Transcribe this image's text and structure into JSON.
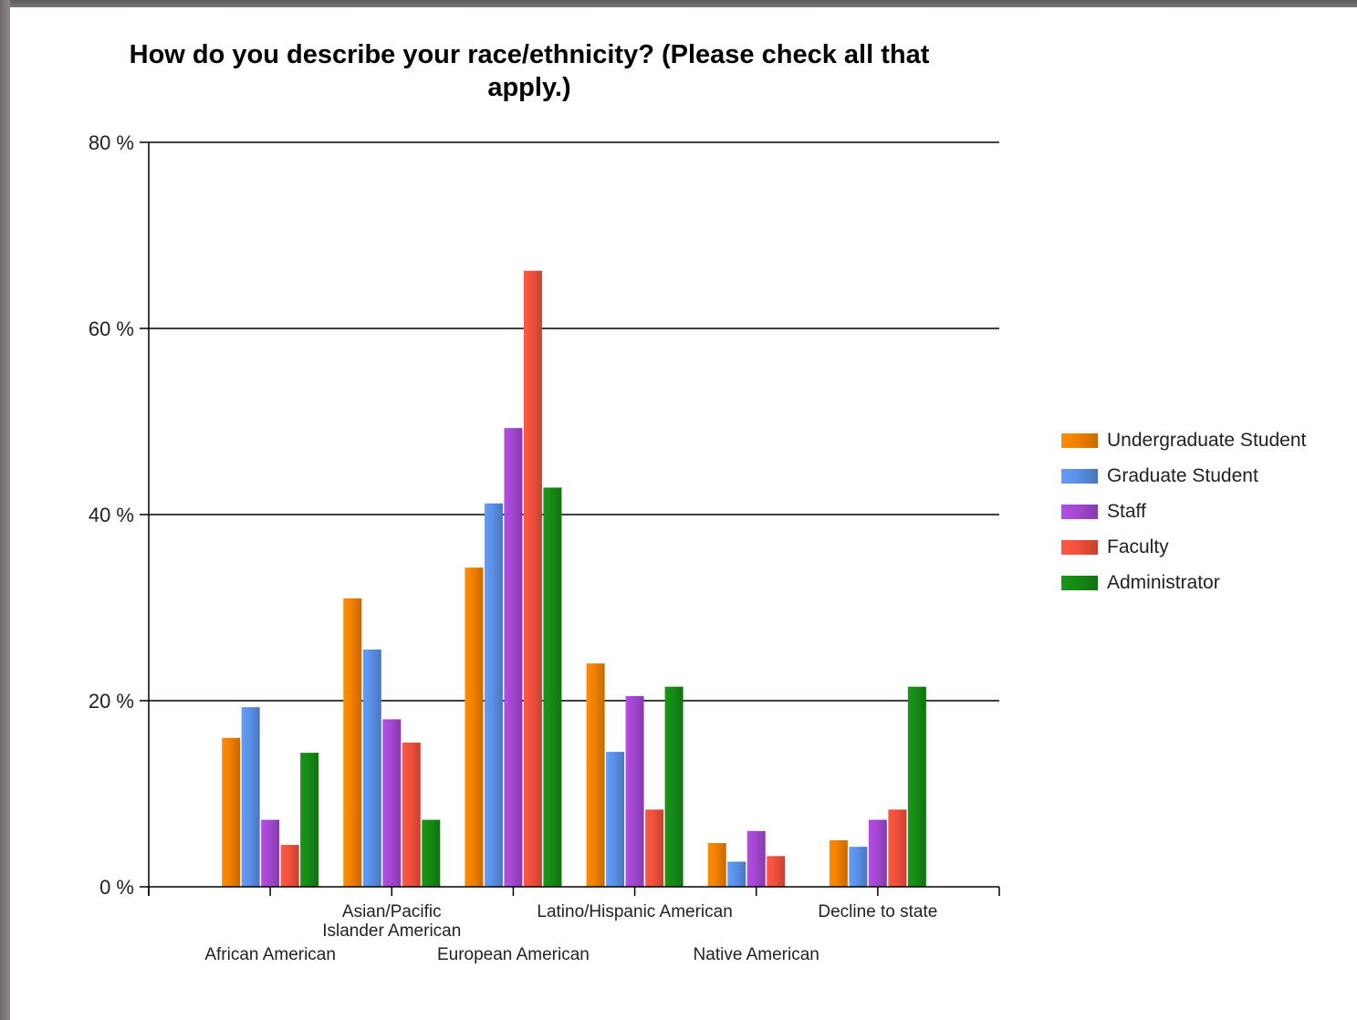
{
  "chart_data": {
    "type": "bar",
    "title": "How do you describe your race/ethnicity? (Please check all that apply.)",
    "xlabel": "",
    "ylabel": "",
    "ylim": [
      0,
      80
    ],
    "yticks": [
      {
        "value": 0,
        "label": "0 %"
      },
      {
        "value": 20,
        "label": "20 %"
      },
      {
        "value": 40,
        "label": "40 %"
      },
      {
        "value": 60,
        "label": "60 %"
      },
      {
        "value": 80,
        "label": "80 %"
      }
    ],
    "grid": true,
    "legend_position": "right",
    "categories": [
      {
        "label_lines": [
          "African American"
        ],
        "row": "low"
      },
      {
        "label_lines": [
          "Asian/Pacific",
          "Islander American"
        ],
        "row": "high"
      },
      {
        "label_lines": [
          "European American"
        ],
        "row": "low"
      },
      {
        "label_lines": [
          "Latino/Hispanic American"
        ],
        "row": "high"
      },
      {
        "label_lines": [
          "Native American"
        ],
        "row": "low"
      },
      {
        "label_lines": [
          "Decline to state"
        ],
        "row": "high"
      }
    ],
    "series": [
      {
        "name": "Undergraduate Student",
        "color": "#f08000",
        "values": [
          16,
          31,
          34.3,
          24,
          4.7,
          5
        ]
      },
      {
        "name": "Graduate Student",
        "color": "#5a8fe6",
        "values": [
          19.3,
          25.5,
          41.2,
          14.5,
          2.7,
          4.3
        ]
      },
      {
        "name": "Staff",
        "color": "#a347d1",
        "values": [
          7.2,
          18,
          49.3,
          20.5,
          6,
          7.2
        ]
      },
      {
        "name": "Faculty",
        "color": "#f0503c",
        "values": [
          4.5,
          15.5,
          66.2,
          8.3,
          3.3,
          8.3
        ]
      },
      {
        "name": "Administrator",
        "color": "#158a15",
        "values": [
          14.4,
          7.2,
          42.9,
          21.5,
          null,
          21.5
        ]
      }
    ]
  }
}
